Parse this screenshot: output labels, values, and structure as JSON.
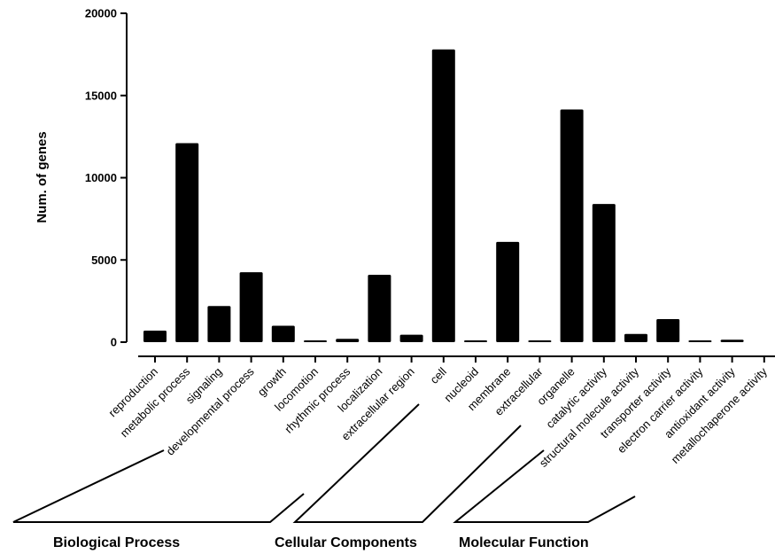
{
  "chart_data": {
    "type": "bar",
    "ylabel": "Num. of genes",
    "xlabel": "",
    "ylim": [
      0,
      20000
    ],
    "yticks": [
      0,
      5000,
      10000,
      15000,
      20000
    ],
    "grid": false,
    "categories": [
      "reproduction",
      "metabolic process",
      "signaling",
      "developmental process",
      "growth",
      "locomotion",
      "rhythmic process",
      "localization",
      "extracellular region",
      "cell",
      "nucleoid",
      "membrane",
      "extracellular",
      "organelle",
      "catalytic activity",
      "structural molecule activity",
      "transporter activity",
      "electron carrier activity",
      "antioxidant activity",
      "metallochaperone activity"
    ],
    "values": [
      700,
      12100,
      2200,
      4250,
      1000,
      50,
      200,
      4100,
      450,
      17800,
      50,
      6100,
      50,
      14150,
      8400,
      500,
      1400,
      50,
      150,
      0
    ],
    "groups": [
      {
        "label": "Biological Process",
        "start": 0,
        "end": 8
      },
      {
        "label": "Cellular Components",
        "start": 8,
        "end": 13
      },
      {
        "label": "Molecular Function",
        "start": 14,
        "end": 19
      }
    ]
  }
}
